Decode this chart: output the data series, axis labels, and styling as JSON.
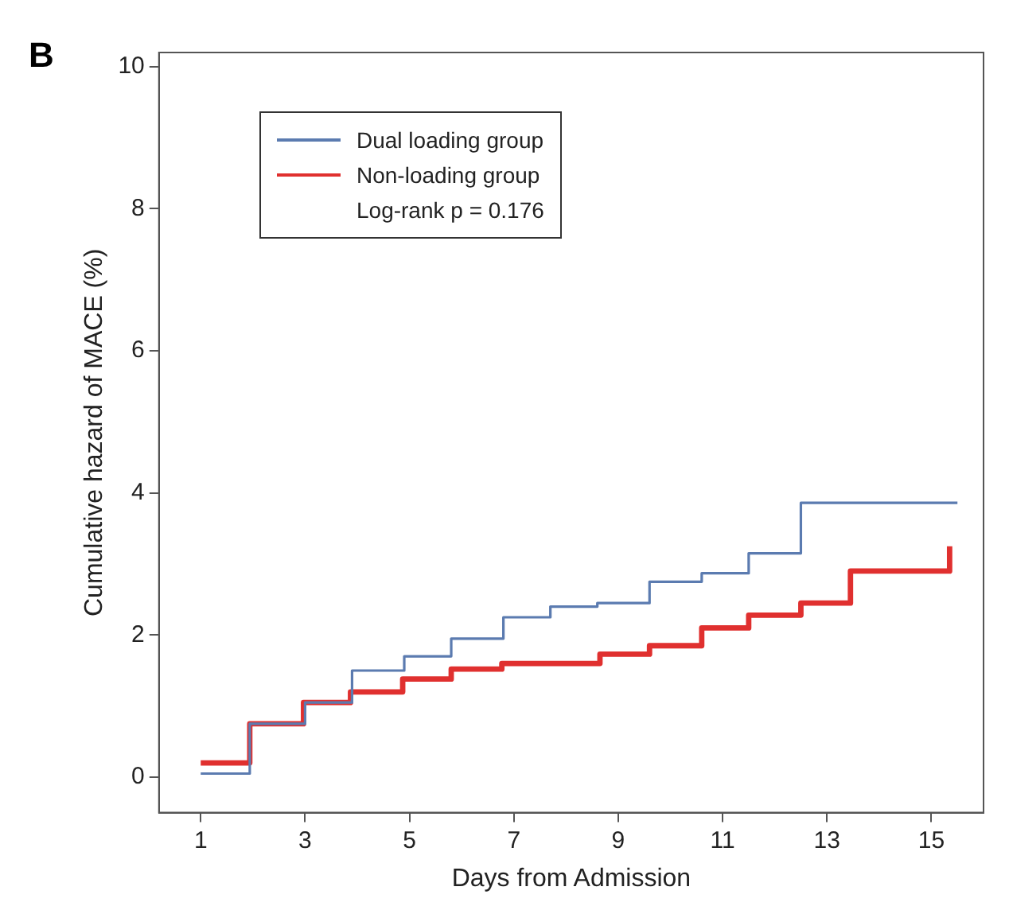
{
  "chart_data": {
    "type": "step",
    "xlabel": "Days from Admission",
    "ylabel": "Cumulative hazard of MACE (%)",
    "annotations": [
      "B",
      "Log-rank p = 0.176"
    ],
    "xlim": [
      0.2,
      16
    ],
    "xticks": [
      1,
      3,
      5,
      7,
      9,
      11,
      13,
      15
    ],
    "ylim": [
      -0.5,
      10.2
    ],
    "yticks": [
      0,
      2,
      4,
      6,
      8,
      10
    ],
    "grid": false,
    "legend": "top left",
    "line_style": "solid",
    "marker": "none",
    "series": [
      {
        "name": "Dual loading group",
        "color": "#5b7bb0",
        "x": [
          1,
          1.94,
          3,
          3.9,
          4.9,
          5.8,
          6.8,
          7.7,
          8.6,
          9.6,
          10.6,
          11.5,
          12.5,
          15.5
        ],
        "values": [
          0.05,
          0.75,
          1.05,
          1.5,
          1.7,
          1.95,
          2.25,
          2.4,
          2.45,
          2.75,
          2.87,
          3.15,
          3.86,
          3.86
        ]
      },
      {
        "name": "Non-loading group",
        "color": "#e0302f",
        "x": [
          1,
          1.94,
          2.97,
          3.87,
          4.87,
          5.8,
          6.77,
          8.65,
          9.6,
          10.6,
          11.5,
          12.5,
          13.45,
          15.35,
          15.35
        ],
        "values": [
          0.2,
          0.75,
          1.05,
          1.2,
          1.38,
          1.52,
          1.6,
          1.73,
          1.85,
          2.1,
          2.28,
          2.45,
          2.9,
          2.9,
          3.25
        ]
      }
    ]
  }
}
